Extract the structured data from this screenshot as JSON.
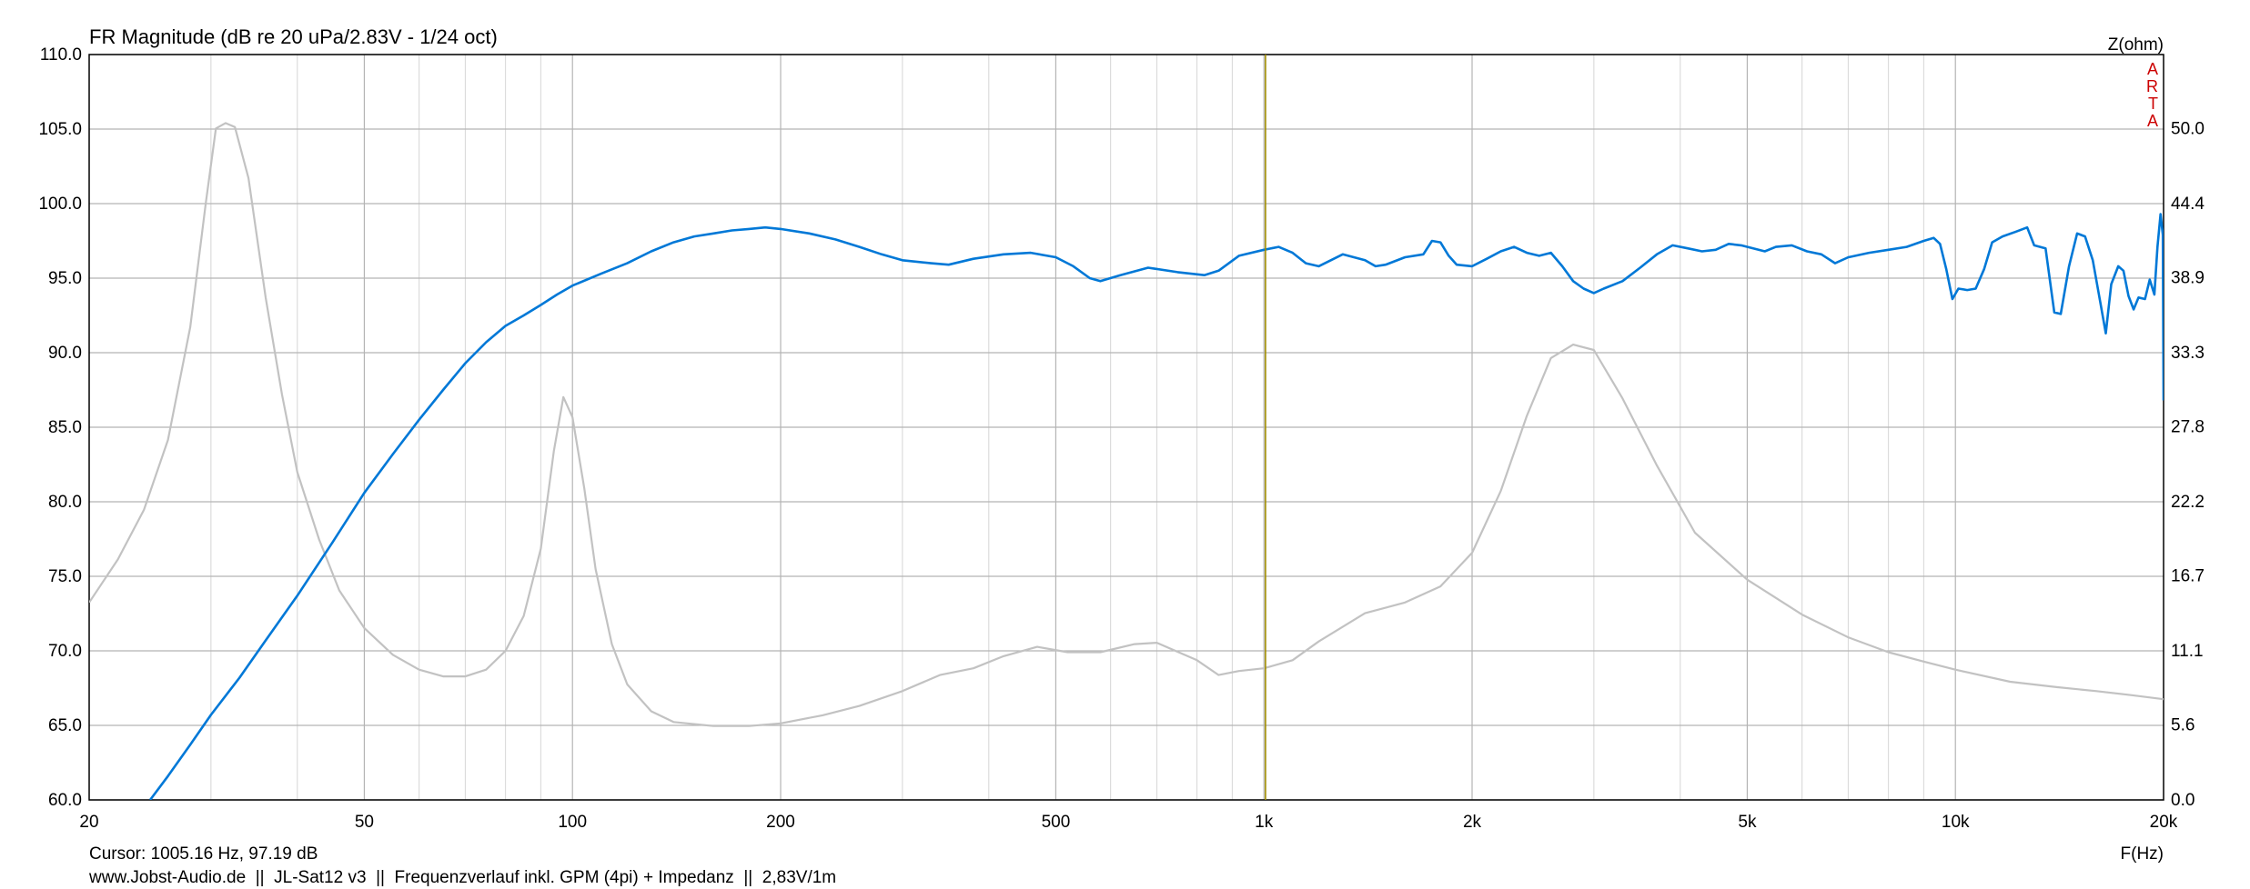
{
  "chart_data": {
    "type": "line",
    "title": "FR Magnitude (dB re 20 uPa/2.83V - 1/24 oct)",
    "xlabel": "F(Hz)",
    "ylabel_right": "Z(ohm)",
    "watermark": "ARTA",
    "x_scale": "log",
    "xlim": [
      20,
      20000
    ],
    "ylim": [
      60,
      110
    ],
    "ylim_right": [
      0,
      55.5
    ],
    "grid": true,
    "x_ticks": [
      20,
      50,
      100,
      200,
      500,
      1000,
      2000,
      5000,
      10000,
      20000
    ],
    "x_tick_labels": [
      "20",
      "50",
      "100",
      "200",
      "500",
      "1k",
      "2k",
      "5k",
      "10k",
      "20k"
    ],
    "y_ticks": [
      60,
      65,
      70,
      75,
      80,
      85,
      90,
      95,
      100,
      105,
      110
    ],
    "y_tick_labels": [
      "60.0",
      "65.0",
      "70.0",
      "75.0",
      "80.0",
      "85.0",
      "90.0",
      "95.0",
      "100.0",
      "105.0",
      "110.0"
    ],
    "y_right_ticks": [
      0,
      5.6,
      11.1,
      16.7,
      22.2,
      27.8,
      33.3,
      38.9,
      44.4,
      50.0
    ],
    "y_right_tick_labels": [
      "0.0",
      "5.6",
      "11.1",
      "16.7",
      "22.2",
      "27.8",
      "33.3",
      "38.9",
      "44.4",
      "50.0"
    ],
    "cursor": {
      "frequency_hz": 1005.16
    },
    "series": [
      {
        "color": "#0078d7",
        "axis": "left",
        "points": [
          [
            24.5,
            60.0
          ],
          [
            26,
            61.6
          ],
          [
            28,
            63.7
          ],
          [
            30,
            65.7
          ],
          [
            33,
            68.2
          ],
          [
            36,
            70.7
          ],
          [
            40,
            73.7
          ],
          [
            45,
            77.3
          ],
          [
            50,
            80.6
          ],
          [
            55,
            83.2
          ],
          [
            60,
            85.5
          ],
          [
            65,
            87.5
          ],
          [
            70,
            89.3
          ],
          [
            75,
            90.7
          ],
          [
            80,
            91.8
          ],
          [
            85,
            92.5
          ],
          [
            90,
            93.2
          ],
          [
            95,
            93.9
          ],
          [
            100,
            94.5
          ],
          [
            110,
            95.3
          ],
          [
            120,
            96.0
          ],
          [
            130,
            96.8
          ],
          [
            140,
            97.4
          ],
          [
            150,
            97.8
          ],
          [
            160,
            98.0
          ],
          [
            170,
            98.2
          ],
          [
            180,
            98.3
          ],
          [
            190,
            98.4
          ],
          [
            200,
            98.3
          ],
          [
            220,
            98.0
          ],
          [
            240,
            97.6
          ],
          [
            260,
            97.1
          ],
          [
            280,
            96.6
          ],
          [
            300,
            96.2
          ],
          [
            330,
            96.0
          ],
          [
            350,
            95.9
          ],
          [
            380,
            96.3
          ],
          [
            420,
            96.6
          ],
          [
            460,
            96.7
          ],
          [
            500,
            96.4
          ],
          [
            530,
            95.8
          ],
          [
            560,
            95.0
          ],
          [
            580,
            94.8
          ],
          [
            620,
            95.2
          ],
          [
            680,
            95.7
          ],
          [
            750,
            95.4
          ],
          [
            820,
            95.2
          ],
          [
            860,
            95.5
          ],
          [
            920,
            96.5
          ],
          [
            1000,
            96.9
          ],
          [
            1050,
            97.1
          ],
          [
            1100,
            96.7
          ],
          [
            1150,
            96.0
          ],
          [
            1200,
            95.8
          ],
          [
            1300,
            96.6
          ],
          [
            1400,
            96.2
          ],
          [
            1450,
            95.8
          ],
          [
            1500,
            95.9
          ],
          [
            1600,
            96.4
          ],
          [
            1700,
            96.6
          ],
          [
            1750,
            97.5
          ],
          [
            1800,
            97.4
          ],
          [
            1850,
            96.5
          ],
          [
            1900,
            95.9
          ],
          [
            2000,
            95.8
          ],
          [
            2100,
            96.3
          ],
          [
            2200,
            96.8
          ],
          [
            2300,
            97.1
          ],
          [
            2400,
            96.7
          ],
          [
            2500,
            96.5
          ],
          [
            2600,
            96.7
          ],
          [
            2700,
            95.8
          ],
          [
            2800,
            94.8
          ],
          [
            2900,
            94.3
          ],
          [
            3000,
            94.0
          ],
          [
            3100,
            94.3
          ],
          [
            3300,
            94.8
          ],
          [
            3500,
            95.7
          ],
          [
            3700,
            96.6
          ],
          [
            3900,
            97.2
          ],
          [
            4100,
            97.0
          ],
          [
            4300,
            96.8
          ],
          [
            4500,
            96.9
          ],
          [
            4700,
            97.3
          ],
          [
            4900,
            97.2
          ],
          [
            5100,
            97.0
          ],
          [
            5300,
            96.8
          ],
          [
            5500,
            97.1
          ],
          [
            5800,
            97.2
          ],
          [
            6100,
            96.8
          ],
          [
            6400,
            96.6
          ],
          [
            6700,
            96.0
          ],
          [
            7000,
            96.4
          ],
          [
            7500,
            96.7
          ],
          [
            8000,
            96.9
          ],
          [
            8500,
            97.1
          ],
          [
            9000,
            97.5
          ],
          [
            9300,
            97.7
          ],
          [
            9500,
            97.3
          ],
          [
            9700,
            95.6
          ],
          [
            9900,
            93.6
          ],
          [
            10100,
            94.3
          ],
          [
            10400,
            94.2
          ],
          [
            10700,
            94.3
          ],
          [
            11000,
            95.6
          ],
          [
            11300,
            97.4
          ],
          [
            11700,
            97.8
          ],
          [
            12200,
            98.1
          ],
          [
            12700,
            98.4
          ],
          [
            13000,
            97.2
          ],
          [
            13500,
            97.0
          ],
          [
            13900,
            92.7
          ],
          [
            14200,
            92.6
          ],
          [
            14600,
            95.8
          ],
          [
            15000,
            98.0
          ],
          [
            15400,
            97.8
          ],
          [
            15800,
            96.2
          ],
          [
            16200,
            93.4
          ],
          [
            16500,
            91.3
          ],
          [
            16800,
            94.6
          ],
          [
            17200,
            95.8
          ],
          [
            17500,
            95.5
          ],
          [
            17800,
            93.8
          ],
          [
            18100,
            92.9
          ],
          [
            18400,
            93.7
          ],
          [
            18800,
            93.6
          ],
          [
            19100,
            94.9
          ],
          [
            19400,
            93.9
          ],
          [
            19600,
            97.1
          ],
          [
            19800,
            99.3
          ],
          [
            19950,
            97.9
          ],
          [
            20000,
            86.8
          ]
        ]
      },
      {
        "color": "#c2c2c2",
        "axis": "right",
        "points": [
          [
            20,
            14.7
          ],
          [
            22,
            17.9
          ],
          [
            24,
            21.6
          ],
          [
            26,
            26.8
          ],
          [
            28,
            35.2
          ],
          [
            29.5,
            44.5
          ],
          [
            30.5,
            50.0
          ],
          [
            31.5,
            50.4
          ],
          [
            32.5,
            50.1
          ],
          [
            34,
            46.3
          ],
          [
            36,
            37.4
          ],
          [
            38,
            30.2
          ],
          [
            40,
            24.4
          ],
          [
            43,
            19.4
          ],
          [
            46,
            15.6
          ],
          [
            50,
            12.8
          ],
          [
            55,
            10.8
          ],
          [
            60,
            9.7
          ],
          [
            65,
            9.2
          ],
          [
            70,
            9.2
          ],
          [
            75,
            9.7
          ],
          [
            80,
            11.1
          ],
          [
            85,
            13.7
          ],
          [
            90,
            18.7
          ],
          [
            94,
            26.0
          ],
          [
            97,
            30.0
          ],
          [
            100,
            28.5
          ],
          [
            104,
            23.2
          ],
          [
            108,
            17.2
          ],
          [
            114,
            11.6
          ],
          [
            120,
            8.6
          ],
          [
            130,
            6.6
          ],
          [
            140,
            5.8
          ],
          [
            160,
            5.5
          ],
          [
            180,
            5.5
          ],
          [
            200,
            5.7
          ],
          [
            230,
            6.3
          ],
          [
            260,
            7.0
          ],
          [
            300,
            8.1
          ],
          [
            340,
            9.3
          ],
          [
            380,
            9.8
          ],
          [
            420,
            10.7
          ],
          [
            470,
            11.4
          ],
          [
            520,
            11.0
          ],
          [
            580,
            11.0
          ],
          [
            650,
            11.6
          ],
          [
            700,
            11.7
          ],
          [
            800,
            10.4
          ],
          [
            860,
            9.3
          ],
          [
            920,
            9.6
          ],
          [
            1000,
            9.8
          ],
          [
            1100,
            10.4
          ],
          [
            1200,
            11.8
          ],
          [
            1400,
            13.9
          ],
          [
            1600,
            14.7
          ],
          [
            1800,
            15.9
          ],
          [
            2000,
            18.4
          ],
          [
            2200,
            23.0
          ],
          [
            2400,
            28.6
          ],
          [
            2600,
            32.9
          ],
          [
            2800,
            33.9
          ],
          [
            3000,
            33.5
          ],
          [
            3300,
            29.9
          ],
          [
            3700,
            24.9
          ],
          [
            4200,
            19.9
          ],
          [
            5000,
            16.4
          ],
          [
            6000,
            13.8
          ],
          [
            7000,
            12.1
          ],
          [
            8000,
            11.0
          ],
          [
            9000,
            10.3
          ],
          [
            10000,
            9.7
          ],
          [
            12000,
            8.8
          ],
          [
            14000,
            8.4
          ],
          [
            16000,
            8.1
          ],
          [
            18000,
            7.8
          ],
          [
            20000,
            7.5
          ]
        ]
      }
    ]
  },
  "labels": {
    "cursor_readout": "Cursor: 1005.16 Hz, 97.19 dB",
    "footer_info": "www.Jobst-Audio.de  ||  JL-Sat12 v3  ||  Frequenzverlauf inkl. GPM (4pi) + Impedanz  ||  2,83V/1m"
  },
  "colors": {
    "fr_curve": "#0078d7",
    "impedance_curve": "#c2c2c2",
    "cursor_line": "#a08c00",
    "watermark": "#cc0000",
    "grid_minor": "#dcdcdc",
    "grid_major": "#b4b4b4"
  }
}
